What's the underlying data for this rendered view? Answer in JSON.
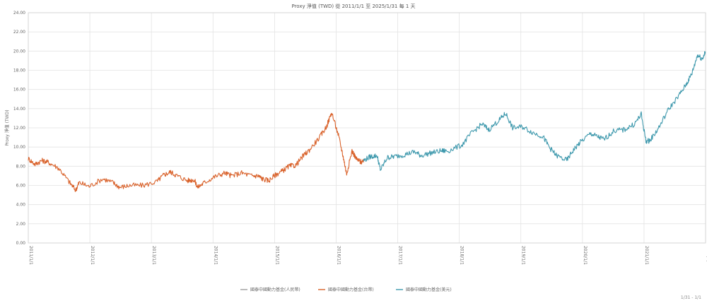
{
  "chart_data": {
    "type": "line",
    "title": "Proxy 淨值 (TWD) 從 2011/1/1 至 2025/1/31 每 1 天",
    "ylabel": "Proxy 淨值 (TWD)",
    "xlabel": "",
    "ylim": [
      0,
      24
    ],
    "yticks": [
      "0.00",
      "2.00",
      "4.00",
      "6.00",
      "8.00",
      "10.00",
      "12.00",
      "14.00",
      "16.00",
      "18.00",
      "20.00",
      "22.00",
      "24.00"
    ],
    "xticks": [
      "2011/1/1",
      "2012/1/1",
      "2013/1/1",
      "2014/1/1",
      "2015/1/1",
      "2016/1/1",
      "2017/1/1",
      "2018/1/1",
      "2019/1/1",
      "2020/1/1",
      "2021/1/1",
      "2025/1/31"
    ],
    "grid": true,
    "legend_position": "bottom-center",
    "series": [
      {
        "name": "國泰中國動力基金(人民幣)",
        "color": "#9e9e9e",
        "points": []
      },
      {
        "name": "國泰中國動力基金(台幣)",
        "color": "#d9622b",
        "points": [
          [
            2011.0,
            8.8
          ],
          [
            2011.1,
            8.2
          ],
          [
            2011.2,
            8.6
          ],
          [
            2011.3,
            8.4
          ],
          [
            2011.45,
            7.8
          ],
          [
            2011.6,
            6.4
          ],
          [
            2011.7,
            5.5
          ],
          [
            2011.75,
            6.3
          ],
          [
            2011.9,
            5.9
          ],
          [
            2012.1,
            6.7
          ],
          [
            2012.25,
            6.3
          ],
          [
            2012.35,
            5.8
          ],
          [
            2012.5,
            6.0
          ],
          [
            2012.7,
            6.0
          ],
          [
            2012.9,
            6.4
          ],
          [
            2013.0,
            7.1
          ],
          [
            2013.1,
            7.4
          ],
          [
            2013.2,
            7.0
          ],
          [
            2013.35,
            6.5
          ],
          [
            2013.45,
            6.6
          ],
          [
            2013.5,
            5.8
          ],
          [
            2013.6,
            6.3
          ],
          [
            2013.75,
            6.9
          ],
          [
            2013.9,
            7.3
          ],
          [
            2014.0,
            7.0
          ],
          [
            2014.15,
            7.3
          ],
          [
            2014.3,
            7.0
          ],
          [
            2014.4,
            7.0
          ],
          [
            2014.45,
            6.7
          ],
          [
            2014.55,
            6.5
          ],
          [
            2014.65,
            7.1
          ],
          [
            2014.75,
            7.5
          ],
          [
            2014.85,
            8.0
          ],
          [
            2014.95,
            8.1
          ],
          [
            2015.05,
            9.0
          ],
          [
            2015.15,
            9.7
          ],
          [
            2015.3,
            11.0
          ],
          [
            2015.4,
            12.1
          ],
          [
            2015.48,
            13.6
          ],
          [
            2015.58,
            11.2
          ],
          [
            2015.65,
            9.0
          ],
          [
            2015.7,
            7.2
          ],
          [
            2015.78,
            9.6
          ],
          [
            2015.85,
            8.7
          ],
          [
            2015.9,
            8.5
          ],
          [
            2015.95,
            8.4
          ]
        ]
      },
      {
        "name": "國泰中國動力基金(美元)",
        "color": "#3f99ad",
        "points": [
          [
            2015.95,
            8.6
          ],
          [
            2016.05,
            9.0
          ],
          [
            2016.15,
            9.1
          ],
          [
            2016.2,
            7.6
          ],
          [
            2016.3,
            8.9
          ],
          [
            2016.4,
            9.0
          ],
          [
            2016.55,
            9.2
          ],
          [
            2016.7,
            9.5
          ],
          [
            2016.8,
            9.1
          ],
          [
            2016.95,
            9.4
          ],
          [
            2017.1,
            9.6
          ],
          [
            2017.2,
            9.6
          ],
          [
            2017.4,
            10.2
          ],
          [
            2017.55,
            11.5
          ],
          [
            2017.7,
            12.4
          ],
          [
            2017.8,
            11.8
          ],
          [
            2017.95,
            12.8
          ],
          [
            2018.05,
            13.5
          ],
          [
            2018.15,
            12.0
          ],
          [
            2018.3,
            12.1
          ],
          [
            2018.45,
            11.5
          ],
          [
            2018.6,
            11.1
          ],
          [
            2018.7,
            9.9
          ],
          [
            2018.8,
            9.1
          ],
          [
            2018.95,
            8.6
          ],
          [
            2019.05,
            9.7
          ],
          [
            2019.15,
            10.5
          ],
          [
            2019.3,
            11.4
          ],
          [
            2019.4,
            11.1
          ],
          [
            2019.5,
            10.8
          ],
          [
            2019.65,
            11.7
          ],
          [
            2019.8,
            11.8
          ],
          [
            2019.95,
            12.4
          ],
          [
            2020.05,
            13.4
          ],
          [
            2020.12,
            10.6
          ],
          [
            2020.18,
            10.7
          ],
          [
            2020.3,
            11.9
          ],
          [
            2020.45,
            13.9
          ],
          [
            2020.6,
            15.3
          ],
          [
            2020.72,
            16.6
          ],
          [
            2020.8,
            17.7
          ],
          [
            2020.88,
            19.6
          ],
          [
            2020.95,
            19.2
          ],
          [
            2021.0,
            19.9
          ]
        ]
      }
    ]
  },
  "footer_note": "1/31 - 1/1"
}
